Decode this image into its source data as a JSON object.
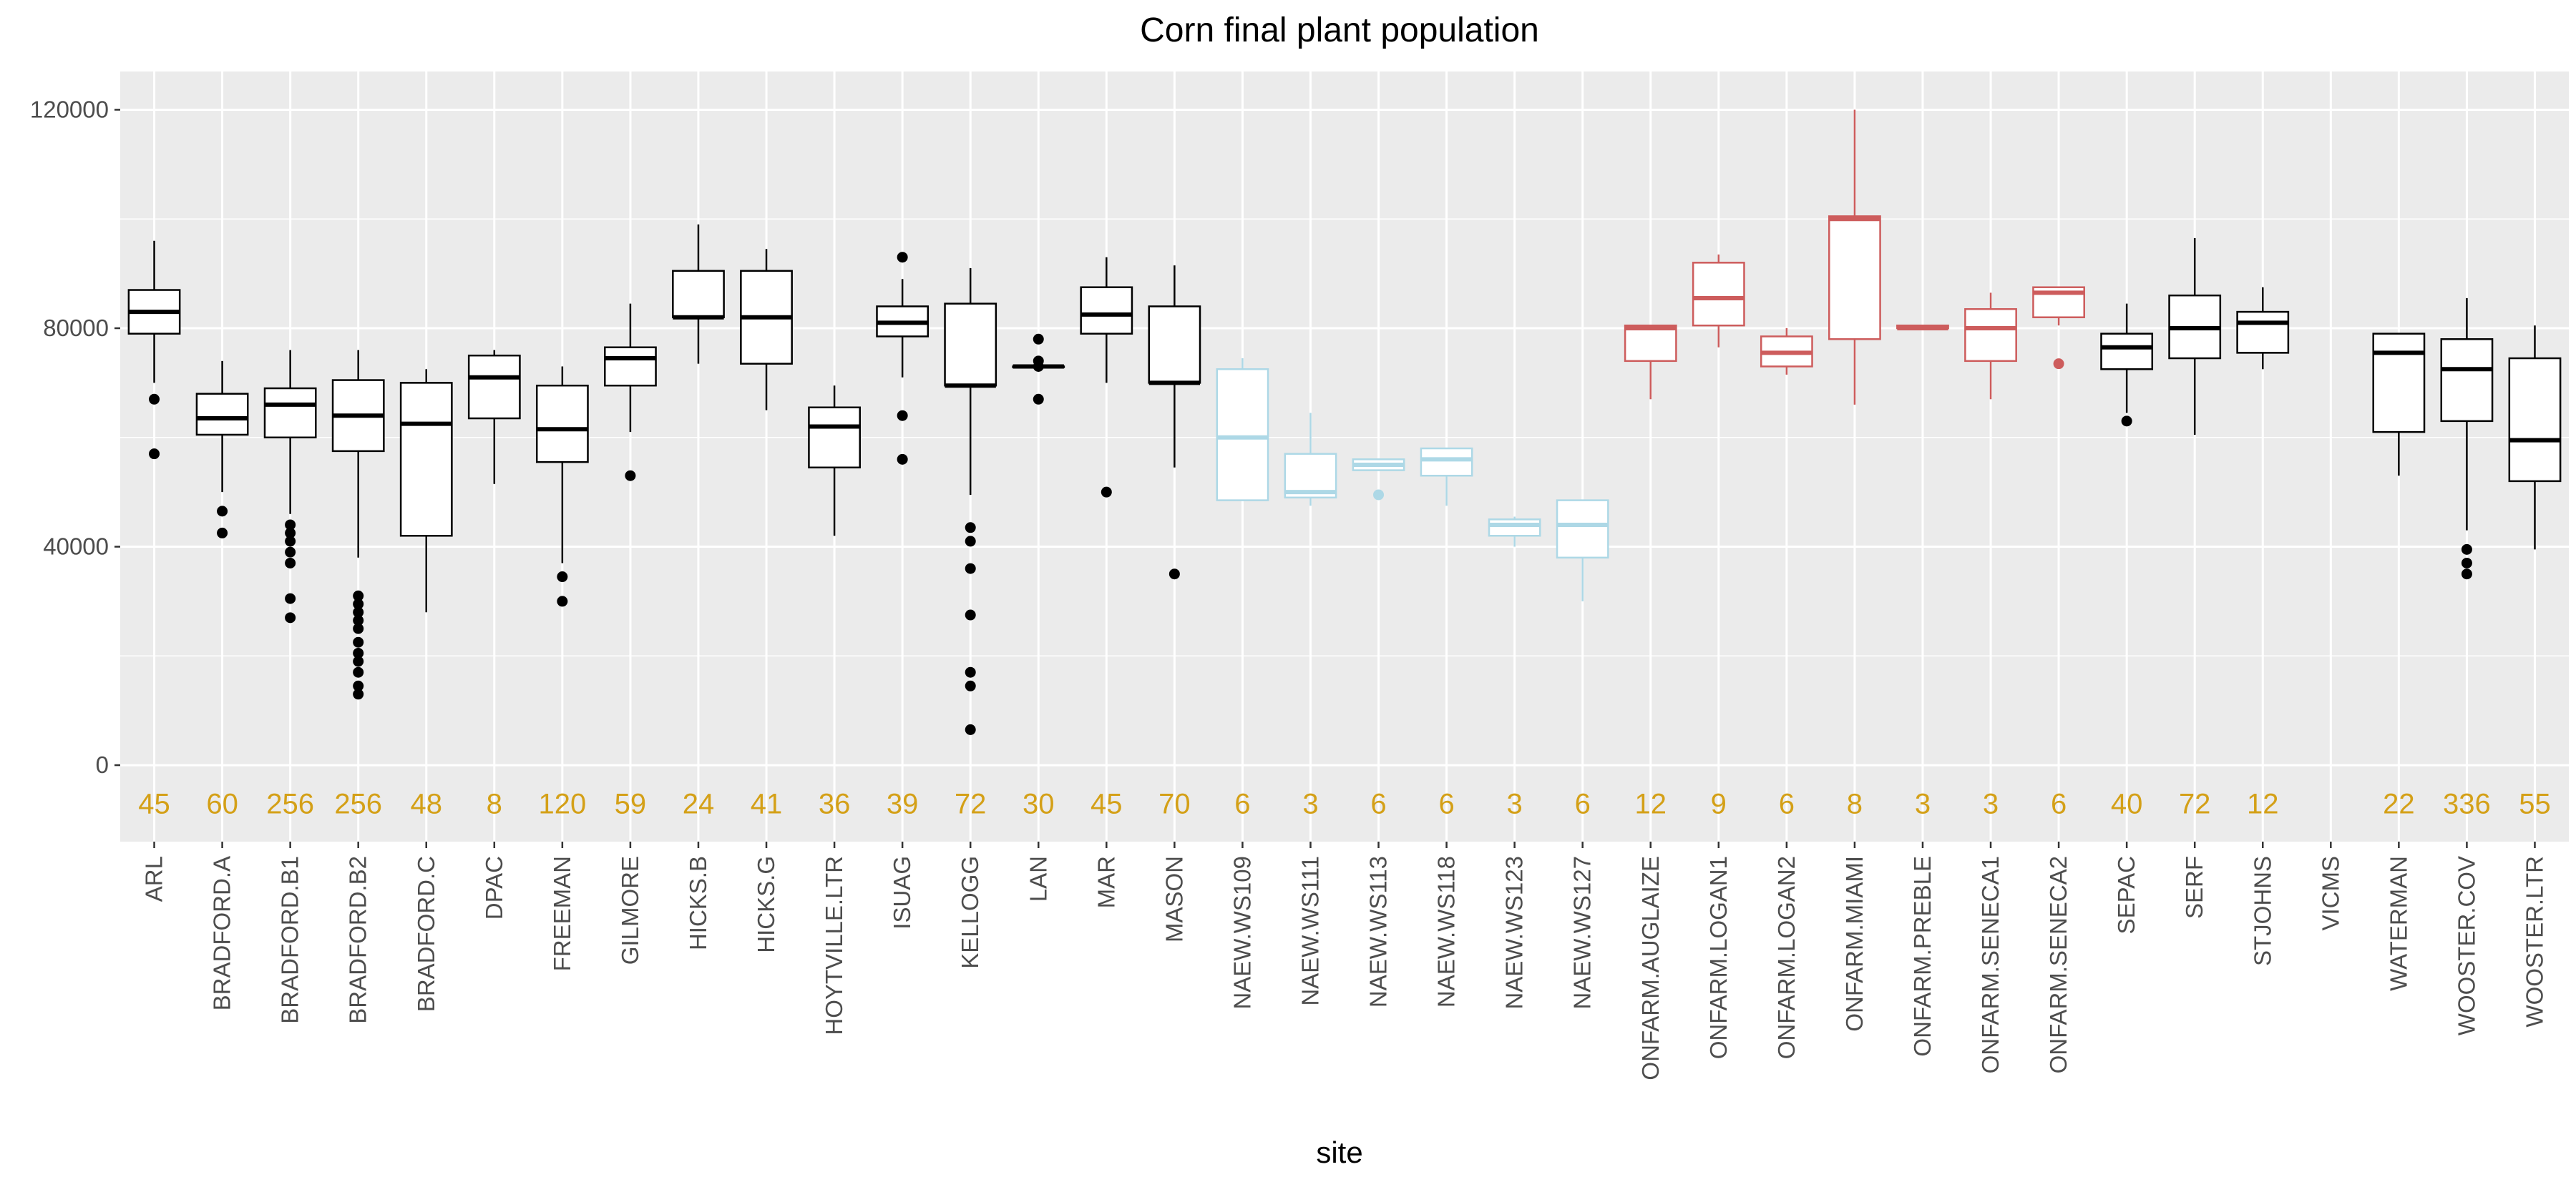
{
  "chart_data": {
    "type": "boxplot",
    "title": "Corn final plant population",
    "xlabel": "site",
    "ylabel": "",
    "ylim": [
      -14000,
      127000
    ],
    "yticks": [
      0,
      40000,
      80000,
      120000
    ],
    "grid": true,
    "panel_background": "#ebebeb",
    "count_label_color": "#d4a017",
    "count_label_y": -7000,
    "colors": {
      "default": "#000000",
      "naew": "#add8e6",
      "onfarm": "#cd5c5c"
    },
    "categories": [
      "ARL",
      "BRADFORD.A",
      "BRADFORD.B1",
      "BRADFORD.B2",
      "BRADFORD.C",
      "DPAC",
      "FREEMAN",
      "GILMORE",
      "HICKS.B",
      "HICKS.G",
      "HOYTVILLE.LTR",
      "ISUAG",
      "KELLOGG",
      "LAN",
      "MAR",
      "MASON",
      "NAEW.WS109",
      "NAEW.WS111",
      "NAEW.WS113",
      "NAEW.WS118",
      "NAEW.WS123",
      "NAEW.WS127",
      "ONFARM.AUGLAIZE",
      "ONFARM.LOGAN1",
      "ONFARM.LOGAN2",
      "ONFARM.MIAMI",
      "ONFARM.PREBLE",
      "ONFARM.SENECA1",
      "ONFARM.SENECA2",
      "SEPAC",
      "SERF",
      "STJOHNS",
      "VICMS",
      "WATERMAN",
      "WOOSTER.COV",
      "WOOSTER.LTR"
    ],
    "boxes": [
      {
        "site": "ARL",
        "n": "45",
        "group": "default",
        "q1": 79000,
        "median": 83000,
        "q3": 87000,
        "lw": 70000,
        "uw": 96000,
        "outliers": [
          67000,
          57000
        ]
      },
      {
        "site": "BRADFORD.A",
        "n": "60",
        "group": "default",
        "q1": 60500,
        "median": 63500,
        "q3": 68000,
        "lw": 50000,
        "uw": 74000,
        "outliers": [
          46500,
          42500
        ]
      },
      {
        "site": "BRADFORD.B1",
        "n": "256",
        "group": "default",
        "q1": 60000,
        "median": 66000,
        "q3": 69000,
        "lw": 46000,
        "uw": 76000,
        "outliers": [
          44000,
          42500,
          41000,
          39000,
          37000,
          30500,
          27000
        ]
      },
      {
        "site": "BRADFORD.B2",
        "n": "256",
        "group": "default",
        "q1": 57500,
        "median": 64000,
        "q3": 70500,
        "lw": 38000,
        "uw": 76000,
        "outliers": [
          31000,
          29500,
          28000,
          26500,
          25000,
          22500,
          20500,
          19000,
          17000,
          14500,
          13000
        ]
      },
      {
        "site": "BRADFORD.C",
        "n": "48",
        "group": "default",
        "q1": 42000,
        "median": 62500,
        "q3": 70000,
        "lw": 28000,
        "uw": 72500,
        "outliers": []
      },
      {
        "site": "DPAC",
        "n": "8",
        "group": "default",
        "q1": 63500,
        "median": 71000,
        "q3": 75000,
        "lw": 51500,
        "uw": 76000,
        "outliers": []
      },
      {
        "site": "FREEMAN",
        "n": "120",
        "group": "default",
        "q1": 55500,
        "median": 61500,
        "q3": 69500,
        "lw": 37000,
        "uw": 73000,
        "outliers": [
          34500,
          30000
        ]
      },
      {
        "site": "GILMORE",
        "n": "59",
        "group": "default",
        "q1": 69500,
        "median": 74500,
        "q3": 76500,
        "lw": 61000,
        "uw": 84500,
        "outliers": [
          53000
        ]
      },
      {
        "site": "HICKS.B",
        "n": "24",
        "group": "default",
        "q1": 82000,
        "median": 82000,
        "q3": 90500,
        "lw": 73500,
        "uw": 99000,
        "outliers": []
      },
      {
        "site": "HICKS.G",
        "n": "41",
        "group": "default",
        "q1": 73500,
        "median": 82000,
        "q3": 90500,
        "lw": 65000,
        "uw": 94500,
        "outliers": []
      },
      {
        "site": "HOYTVILLE.LTR",
        "n": "36",
        "group": "default",
        "q1": 54500,
        "median": 62000,
        "q3": 65500,
        "lw": 42000,
        "uw": 69500,
        "outliers": []
      },
      {
        "site": "ISUAG",
        "n": "39",
        "group": "default",
        "q1": 78500,
        "median": 81000,
        "q3": 84000,
        "lw": 71000,
        "uw": 89000,
        "outliers": [
          93000,
          64000,
          56000
        ]
      },
      {
        "site": "KELLOGG",
        "n": "72",
        "group": "default",
        "q1": 69500,
        "median": 69500,
        "q3": 84500,
        "lw": 49500,
        "uw": 91000,
        "outliers": [
          43500,
          41000,
          36000,
          27500,
          17000,
          14500,
          6500
        ]
      },
      {
        "site": "LAN",
        "n": "30",
        "group": "default",
        "q1": 73000,
        "median": 73000,
        "q3": 73000,
        "lw": 73000,
        "uw": 73000,
        "outliers": [
          78000,
          74000,
          73000,
          67000
        ]
      },
      {
        "site": "MAR",
        "n": "45",
        "group": "default",
        "q1": 79000,
        "median": 82500,
        "q3": 87500,
        "lw": 70000,
        "uw": 93000,
        "outliers": [
          50000
        ]
      },
      {
        "site": "MASON",
        "n": "70",
        "group": "default",
        "q1": 70000,
        "median": 70000,
        "q3": 84000,
        "lw": 54500,
        "uw": 91500,
        "outliers": [
          35000
        ]
      },
      {
        "site": "NAEW.WS109",
        "n": "6",
        "group": "naew",
        "q1": 48500,
        "median": 60000,
        "q3": 72500,
        "lw": 48500,
        "uw": 74500,
        "outliers": []
      },
      {
        "site": "NAEW.WS111",
        "n": "3",
        "group": "naew",
        "q1": 49000,
        "median": 50000,
        "q3": 57000,
        "lw": 47500,
        "uw": 64500,
        "outliers": []
      },
      {
        "site": "NAEW.WS113",
        "n": "6",
        "group": "naew",
        "q1": 54000,
        "median": 55000,
        "q3": 56000,
        "lw": 54000,
        "uw": 56000,
        "outliers": [
          49500
        ]
      },
      {
        "site": "NAEW.WS118",
        "n": "6",
        "group": "naew",
        "q1": 53000,
        "median": 56000,
        "q3": 58000,
        "lw": 47500,
        "uw": 58000,
        "outliers": []
      },
      {
        "site": "NAEW.WS123",
        "n": "3",
        "group": "naew",
        "q1": 42000,
        "median": 44000,
        "q3": 45000,
        "lw": 40000,
        "uw": 45500,
        "outliers": []
      },
      {
        "site": "NAEW.WS127",
        "n": "6",
        "group": "naew",
        "q1": 38000,
        "median": 44000,
        "q3": 48500,
        "lw": 30000,
        "uw": 48500,
        "outliers": []
      },
      {
        "site": "ONFARM.AUGLAIZE",
        "n": "12",
        "group": "onfarm",
        "q1": 74000,
        "median": 80000,
        "q3": 80500,
        "lw": 67000,
        "uw": 80500,
        "outliers": []
      },
      {
        "site": "ONFARM.LOGAN1",
        "n": "9",
        "group": "onfarm",
        "q1": 80500,
        "median": 85500,
        "q3": 92000,
        "lw": 76500,
        "uw": 93500,
        "outliers": []
      },
      {
        "site": "ONFARM.LOGAN2",
        "n": "6",
        "group": "onfarm",
        "q1": 73000,
        "median": 75500,
        "q3": 78500,
        "lw": 71500,
        "uw": 80000,
        "outliers": []
      },
      {
        "site": "ONFARM.MIAMI",
        "n": "8",
        "group": "onfarm",
        "q1": 78000,
        "median": 100000,
        "q3": 100500,
        "lw": 66000,
        "uw": 120000,
        "outliers": []
      },
      {
        "site": "ONFARM.PREBLE",
        "n": "3",
        "group": "onfarm",
        "q1": 80000,
        "median": 80000,
        "q3": 80500,
        "lw": 80000,
        "uw": 80500,
        "outliers": []
      },
      {
        "site": "ONFARM.SENECA1",
        "n": "3",
        "group": "onfarm",
        "q1": 74000,
        "median": 80000,
        "q3": 83500,
        "lw": 67000,
        "uw": 86500,
        "outliers": []
      },
      {
        "site": "ONFARM.SENECA2",
        "n": "6",
        "group": "onfarm",
        "q1": 82000,
        "median": 86500,
        "q3": 87500,
        "lw": 80500,
        "uw": 87500,
        "outliers": [
          73500
        ]
      },
      {
        "site": "SEPAC",
        "n": "40",
        "group": "default",
        "q1": 72500,
        "median": 76500,
        "q3": 79000,
        "lw": 64500,
        "uw": 84500,
        "outliers": [
          63000
        ]
      },
      {
        "site": "SERF",
        "n": "72",
        "group": "default",
        "q1": 74500,
        "median": 80000,
        "q3": 86000,
        "lw": 60500,
        "uw": 96500,
        "outliers": []
      },
      {
        "site": "STJOHNS",
        "n": "12",
        "group": "default",
        "q1": 75500,
        "median": 81000,
        "q3": 83000,
        "lw": 72500,
        "uw": 87500,
        "outliers": []
      },
      {
        "site": "VICMS",
        "n": "",
        "group": "default",
        "q1": null,
        "median": null,
        "q3": null,
        "lw": null,
        "uw": null,
        "outliers": []
      },
      {
        "site": "WATERMAN",
        "n": "22",
        "group": "default",
        "q1": 61000,
        "median": 75500,
        "q3": 79000,
        "lw": 53000,
        "uw": 79000,
        "outliers": []
      },
      {
        "site": "WOOSTER.COV",
        "n": "336",
        "group": "default",
        "q1": 63000,
        "median": 72500,
        "q3": 78000,
        "lw": 43000,
        "uw": 85500,
        "outliers": [
          39500,
          37000,
          35000
        ]
      },
      {
        "site": "WOOSTER.LTR",
        "n": "55",
        "group": "default",
        "q1": 52000,
        "median": 59500,
        "q3": 74500,
        "lw": 39500,
        "uw": 80500,
        "outliers": []
      }
    ]
  }
}
